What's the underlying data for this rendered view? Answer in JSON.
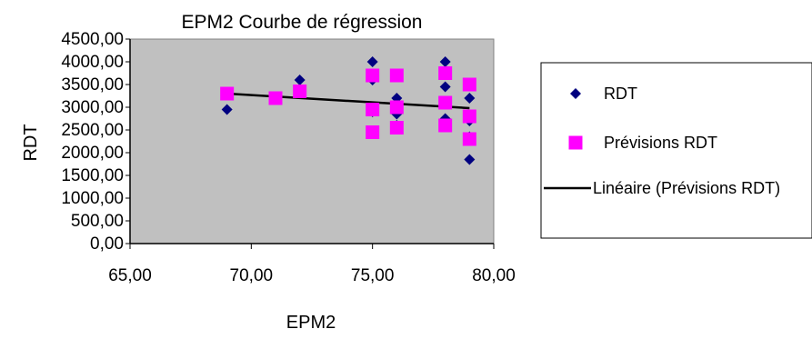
{
  "chart_data": {
    "type": "scatter",
    "title": "EPM2 Courbe de régression",
    "xlabel": "EPM2",
    "ylabel": "RDT",
    "xlim": [
      65,
      80
    ],
    "ylim": [
      0,
      4500
    ],
    "xticks": [
      "65,00",
      "70,00",
      "75,00",
      "80,00"
    ],
    "yticks": [
      "0,00",
      "500,00",
      "1000,00",
      "1500,00",
      "2000,00",
      "2500,00",
      "3000,00",
      "3500,00",
      "4000,00",
      "4500,00"
    ],
    "grid": false,
    "plot_background": "#c0c0c0",
    "legend_position": "right",
    "series": [
      {
        "name": "RDT",
        "marker": "diamond",
        "color": "#000080",
        "points": [
          [
            69,
            2950
          ],
          [
            69,
            3300
          ],
          [
            71,
            3200
          ],
          [
            72,
            3600
          ],
          [
            72,
            3400
          ],
          [
            75,
            4000
          ],
          [
            75,
            3600
          ],
          [
            75,
            2900
          ],
          [
            75,
            2450
          ],
          [
            76,
            3700
          ],
          [
            76,
            3200
          ],
          [
            76,
            2850
          ],
          [
            76,
            2600
          ],
          [
            78,
            4000
          ],
          [
            78,
            3450
          ],
          [
            78,
            2750
          ],
          [
            79,
            3200
          ],
          [
            79,
            2700
          ],
          [
            79,
            2350
          ],
          [
            79,
            1850
          ]
        ]
      },
      {
        "name": "Prévisions RDT",
        "marker": "square",
        "color": "#ff00ff",
        "points": [
          [
            69,
            3300
          ],
          [
            71,
            3200
          ],
          [
            72,
            3350
          ],
          [
            75,
            3700
          ],
          [
            75,
            2950
          ],
          [
            75,
            2450
          ],
          [
            76,
            3700
          ],
          [
            76,
            3000
          ],
          [
            76,
            2550
          ],
          [
            78,
            3750
          ],
          [
            78,
            3100
          ],
          [
            78,
            2600
          ],
          [
            79,
            3500
          ],
          [
            79,
            2800
          ],
          [
            79,
            2300
          ]
        ]
      },
      {
        "name": "Linéaire (Prévisions RDT)",
        "marker": "line",
        "color": "#000000",
        "points": [
          [
            69,
            3300
          ],
          [
            79,
            2980
          ]
        ]
      }
    ]
  }
}
